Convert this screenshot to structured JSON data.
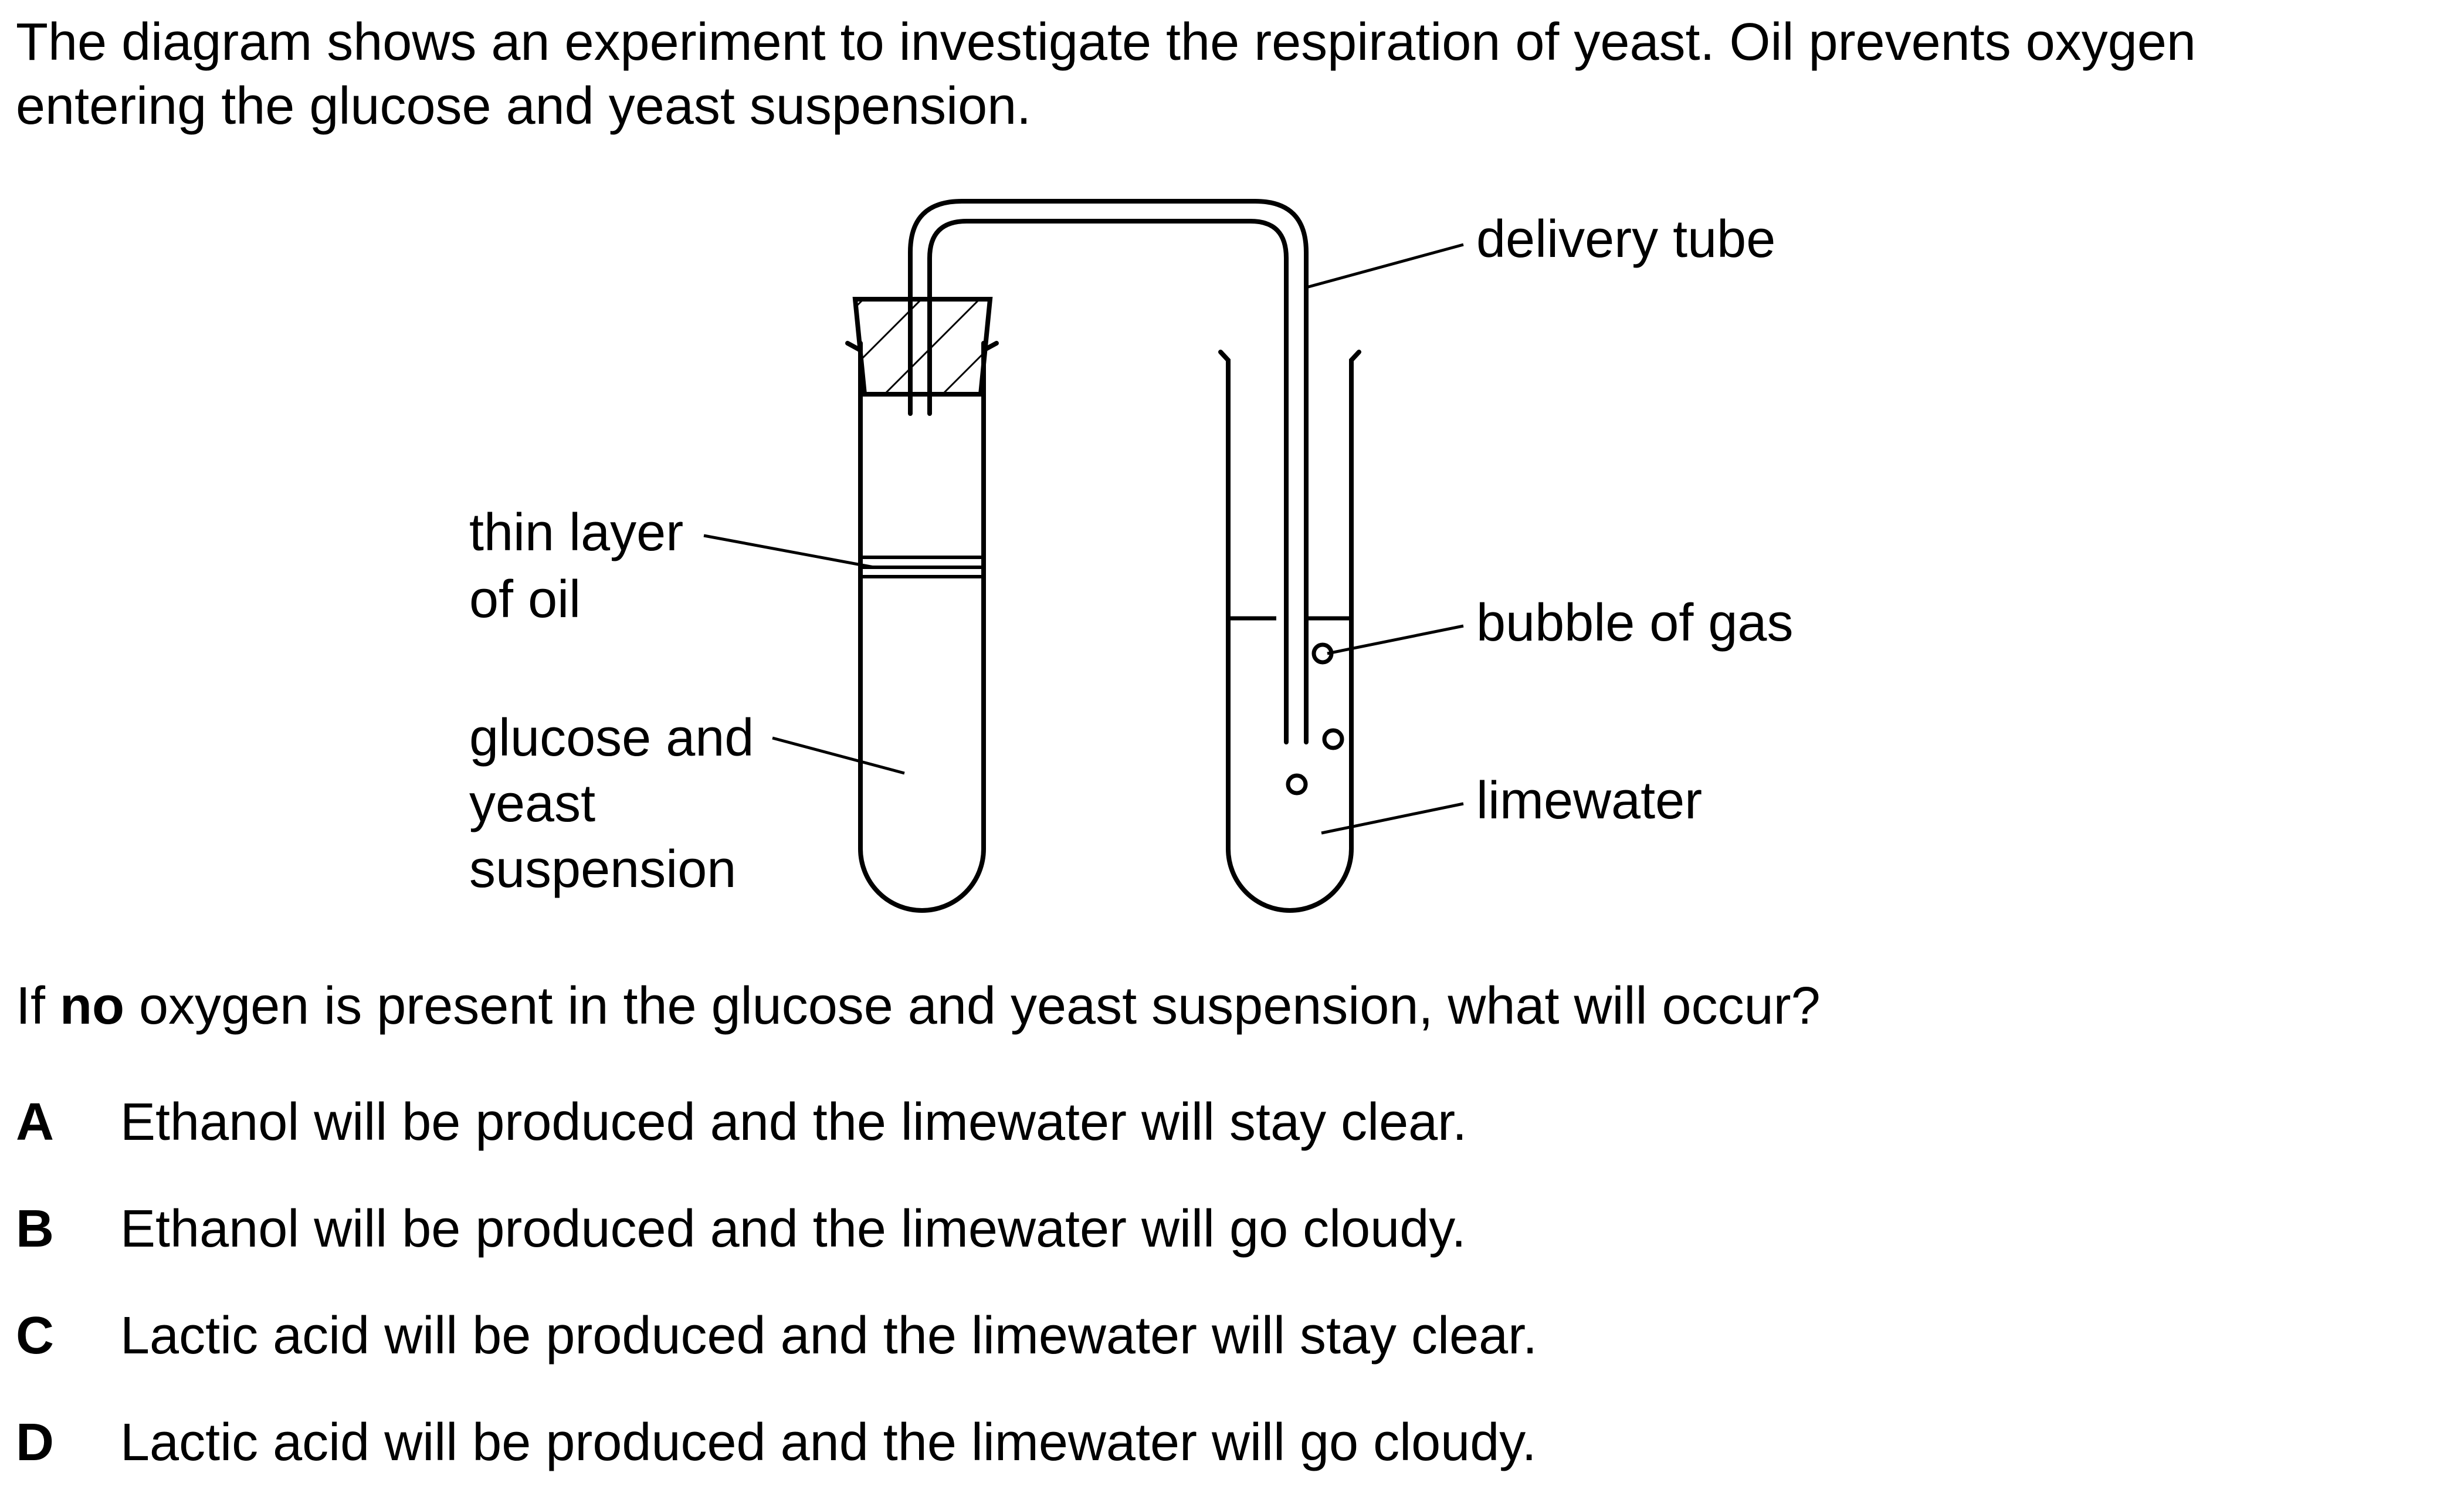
{
  "intro": {
    "line1": "The diagram shows an experiment to investigate the respiration of yeast. Oil prevents oxygen",
    "line2": "entering the glucose and yeast suspension."
  },
  "diagram": {
    "labels": {
      "delivery_tube": "delivery tube",
      "oil_line1": "thin layer",
      "oil_line2": "of oil",
      "glucose_line1": "glucose and",
      "glucose_line2": "yeast",
      "glucose_line3": "suspension",
      "bubble": "bubble of gas",
      "limewater": "limewater"
    }
  },
  "question": {
    "prefix": "If",
    "emphasis": "no",
    "rest": "oxygen is present in the glucose and yeast suspension, what will occur?"
  },
  "options": [
    {
      "letter": "A",
      "text": "Ethanol will be produced and the limewater will stay clear."
    },
    {
      "letter": "B",
      "text": "Ethanol will be produced and the limewater will go cloudy."
    },
    {
      "letter": "C",
      "text": "Lactic acid will be produced and the limewater will stay clear."
    },
    {
      "letter": "D",
      "text": "Lactic acid will be produced and the limewater will go cloudy."
    }
  ]
}
